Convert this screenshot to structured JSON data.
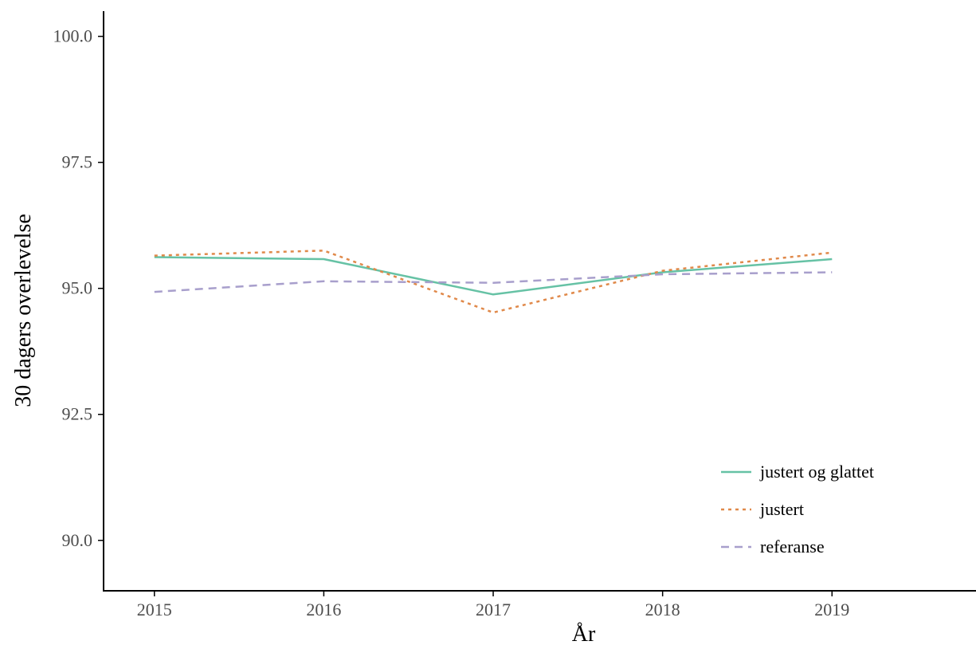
{
  "chart_data": {
    "type": "line",
    "title": "",
    "xlabel": "År",
    "ylabel": "30 dagers overlevelse",
    "x": [
      2015,
      2016,
      2017,
      2018,
      2019
    ],
    "x_tick_labels": [
      "2015",
      "2016",
      "2017",
      "2018",
      "2019"
    ],
    "xlim": [
      2014.7,
      2019.85
    ],
    "ylim": [
      89.0,
      100.5
    ],
    "y_ticks": [
      90.0,
      92.5,
      95.0,
      97.5,
      100.0
    ],
    "y_tick_labels": [
      "90.0",
      "92.5",
      "95.0",
      "97.5",
      "100.0"
    ],
    "grid": false,
    "legend_position": "bottom-right",
    "series": [
      {
        "name": "justert og glattet",
        "values": [
          95.62,
          95.58,
          94.88,
          95.32,
          95.58
        ],
        "color": "#66c2a5",
        "dash": "solid"
      },
      {
        "name": "justert",
        "values": [
          95.65,
          95.75,
          94.52,
          95.35,
          95.71
        ],
        "color": "#e0894a",
        "dash": "dotted"
      },
      {
        "name": "referanse",
        "values": [
          94.93,
          95.14,
          95.11,
          95.28,
          95.32
        ],
        "color": "#a89fcc",
        "dash": "dashed"
      }
    ]
  }
}
